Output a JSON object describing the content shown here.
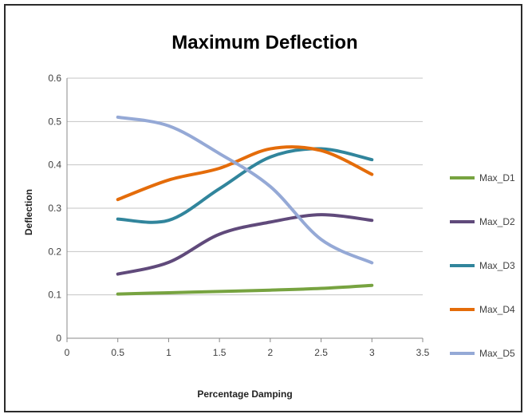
{
  "chart_data": {
    "type": "line",
    "title": "Maximum Deflection",
    "xlabel": "Percentage Damping",
    "ylabel": "Deflection",
    "xlim": [
      0,
      3.5
    ],
    "ylim": [
      0,
      0.6
    ],
    "x_ticks": [
      0,
      0.5,
      1,
      1.5,
      2,
      2.5,
      3,
      3.5
    ],
    "x_tick_labels": [
      "0",
      "0.5",
      "1",
      "1.5",
      "2",
      "2.5",
      "3",
      "3.5"
    ],
    "y_ticks": [
      0,
      0.1,
      0.2,
      0.3,
      0.4,
      0.5,
      0.6
    ],
    "y_tick_labels": [
      "0",
      "0.1",
      "0.2",
      "0.3",
      "0.4",
      "0.5",
      "0.6"
    ],
    "grid": "horizontal",
    "legend_position": "right",
    "x": [
      0.5,
      1,
      1.5,
      2,
      2.5,
      3
    ],
    "series": [
      {
        "name": "Max_D1",
        "color": "#77a340",
        "values": [
          0.102,
          0.105,
          0.108,
          0.111,
          0.115,
          0.122
        ]
      },
      {
        "name": "Max_D2",
        "color": "#604a7b",
        "values": [
          0.148,
          0.175,
          0.24,
          0.268,
          0.285,
          0.272
        ]
      },
      {
        "name": "Max_D3",
        "color": "#31859c",
        "values": [
          0.275,
          0.272,
          0.345,
          0.418,
          0.437,
          0.412
        ]
      },
      {
        "name": "Max_D4",
        "color": "#e46c0a",
        "values": [
          0.32,
          0.365,
          0.392,
          0.437,
          0.433,
          0.378
        ]
      },
      {
        "name": "Max_D5",
        "color": "#95a9d6",
        "values": [
          0.51,
          0.49,
          0.426,
          0.35,
          0.228,
          0.174
        ]
      }
    ]
  }
}
